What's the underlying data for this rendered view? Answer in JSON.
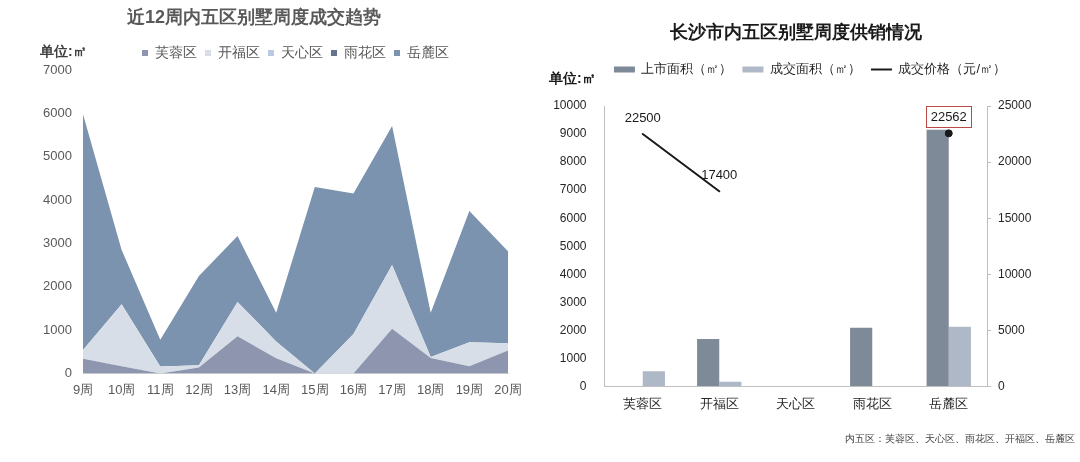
{
  "chart_data": [
    {
      "type": "area",
      "title": "近12周内五区别墅周度成交趋势",
      "ylabel": "单位:㎡",
      "stacked": true,
      "legend": "top",
      "categories": [
        "9周",
        "10周",
        "11周",
        "12周",
        "13周",
        "14周",
        "15周",
        "16周",
        "17周",
        "18周",
        "19周",
        "20周"
      ],
      "ylim": [
        0,
        7000
      ],
      "yticks": [
        0,
        1000,
        2000,
        3000,
        4000,
        5000,
        6000,
        7000
      ],
      "series": [
        {
          "name": "芙蓉区",
          "color": "#8d96ae",
          "values": [
            340,
            170,
            0,
            140,
            860,
            350,
            0,
            0,
            1030,
            360,
            170,
            530
          ]
        },
        {
          "name": "开福区",
          "color": "#d7dee8",
          "values": [
            200,
            1430,
            160,
            50,
            790,
            390,
            0,
            910,
            1470,
            20,
            550,
            170
          ]
        },
        {
          "name": "天心区",
          "color": "#b8cbe3",
          "values": [
            null,
            null,
            null,
            null,
            null,
            null,
            null,
            null,
            null,
            null,
            null,
            null
          ]
        },
        {
          "name": "雨花区",
          "color": "#64748b",
          "values": [
            null,
            null,
            null,
            null,
            null,
            null,
            null,
            null,
            null,
            null,
            null,
            null
          ]
        },
        {
          "name": "岳麓区",
          "color": "#7b93ae",
          "values": [
            5440,
            1250,
            620,
            2060,
            1520,
            660,
            4300,
            3240,
            3210,
            1020,
            3030,
            2120
          ]
        }
      ]
    },
    {
      "type": "bar",
      "title": "长沙市内五区别墅周度供销情况",
      "ylabel": "单位:㎡",
      "legend": "top",
      "categories": [
        "芙蓉区",
        "开福区",
        "天心区",
        "雨花区",
        "岳麓区"
      ],
      "ylim": [
        0,
        10000
      ],
      "yticks": [
        0,
        1000,
        2000,
        3000,
        4000,
        5000,
        6000,
        7000,
        8000,
        9000,
        10000
      ],
      "y2lim": [
        0,
        25000
      ],
      "y2ticks": [
        0,
        5000,
        10000,
        15000,
        20000,
        25000
      ],
      "series": [
        {
          "name": "上市面积（㎡）",
          "color": "#7f8a99",
          "values": [
            0,
            1700,
            0,
            2100,
            9150
          ]
        },
        {
          "name": "成交面积（㎡）",
          "color": "#aeb8c6",
          "values": [
            550,
            170,
            0,
            0,
            2130
          ]
        },
        {
          "name": "成交价格（元/㎡）",
          "type": "line",
          "axis": "y2",
          "color": "#1a1a1a",
          "values": [
            22500,
            17400,
            null,
            null,
            22562
          ],
          "value_labels": [
            "22500",
            "17400",
            null,
            null,
            "22562"
          ]
        }
      ],
      "annotations": [
        "内五区：芙蓉区、天心区、雨花区、开福区、岳麓区"
      ]
    }
  ]
}
